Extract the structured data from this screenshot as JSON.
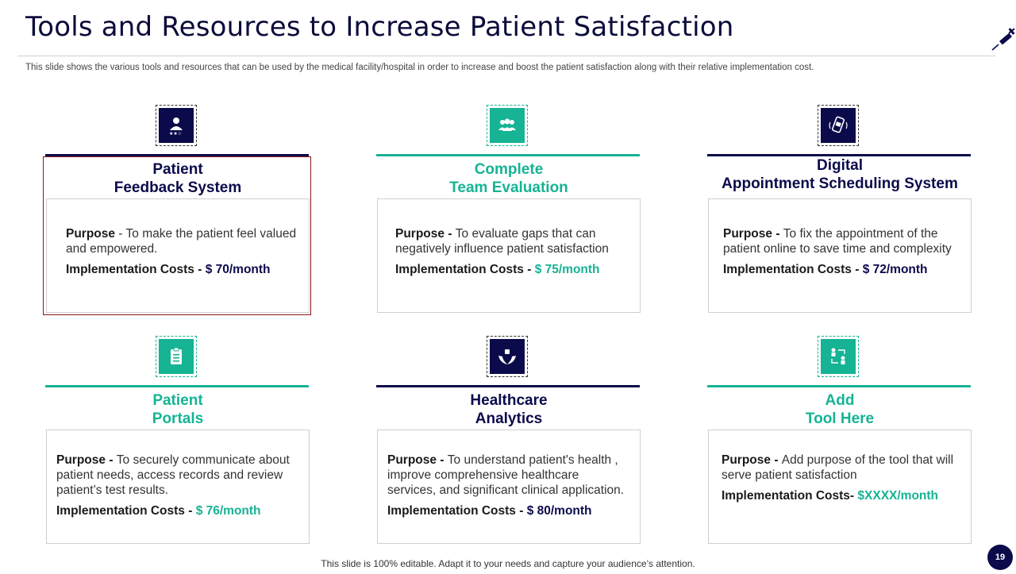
{
  "slide": {
    "title": "Tools and Resources to Increase Patient Satisfaction",
    "subtitle": "This slide shows the various tools and resources that can be used by the medical facility/hospital in order to increase and boost the patient satisfaction along with their relative implementation cost.",
    "footer": "This slide is 100% editable. Adapt it to your needs and capture your audience’s attention.",
    "page_number": "19",
    "corner_icon": "syringe-icon"
  },
  "colors": {
    "navy": "#0b0b4b",
    "teal": "#16b394",
    "selection": "#8b1a1a"
  },
  "cards": [
    {
      "icon": "patient-rating-icon",
      "title_line1": "Patient",
      "title_line2": "Feedback System",
      "purpose_label": "Purpose",
      "purpose_sep": " - ",
      "purpose_text": "To make the patient feel valued and empowered.",
      "cost_label": "Implementation Costs - ",
      "cost_value": "$ 70/month"
    },
    {
      "icon": "team-icon",
      "title_line1": "Complete",
      "title_line2": "Team Evaluation",
      "purpose_label": "Purpose - ",
      "purpose_sep": "",
      "purpose_text": "To evaluate gaps that can negatively influence patient satisfaction",
      "cost_label": "Implementation Costs - ",
      "cost_value": "$ 75/month"
    },
    {
      "icon": "mobile-appointment-icon",
      "title_line1": "Digital",
      "title_line2": "Appointment Scheduling System",
      "purpose_label": "Purpose - ",
      "purpose_sep": "",
      "purpose_text": "To fix the appointment of the patient online to save time and complexity",
      "cost_label": "Implementation Costs - ",
      "cost_value": "$ 72/month"
    },
    {
      "icon": "clipboard-icon",
      "title_line1": "Patient",
      "title_line2": "Portals",
      "purpose_label": "Purpose - ",
      "purpose_sep": "",
      "purpose_text": "To securely communicate about patient needs, access records and review patient’s test results.",
      "cost_label": "Implementation Costs - ",
      "cost_value": "$ 76/month"
    },
    {
      "icon": "healthcare-hands-icon",
      "title_line1": "Healthcare",
      "title_line2": "Analytics",
      "purpose_label": "Purpose - ",
      "purpose_sep": "",
      "purpose_text": "To understand patient's health , improve comprehensive healthcare services, and significant clinical application.",
      "cost_label": "Implementation Costs - ",
      "cost_value": "$ 80/month"
    },
    {
      "icon": "people-exchange-icon",
      "title_line1": "Add",
      "title_line2": "Tool Here",
      "purpose_label": "Purpose - ",
      "purpose_sep": "",
      "purpose_text": "Add purpose of the tool that will serve patient satisfaction",
      "cost_label": "Implementation Costs- ",
      "cost_value": "$XXXX/month"
    }
  ]
}
